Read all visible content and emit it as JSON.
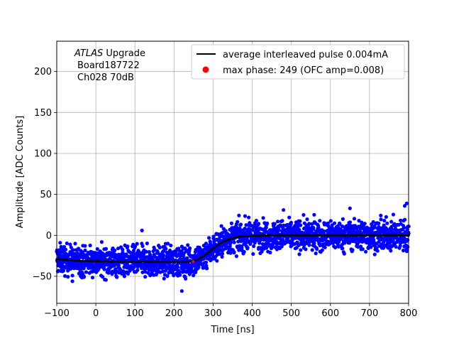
{
  "chart_data": {
    "type": "scatter",
    "xlabel": "Time [ns]",
    "ylabel": "Amplitude [ADC Counts]",
    "xlim": [
      -100,
      800
    ],
    "ylim": [
      -83,
      237
    ],
    "xticks": [
      -100,
      0,
      100,
      200,
      300,
      400,
      500,
      600,
      700,
      800
    ],
    "yticks": [
      -50,
      0,
      50,
      100,
      150,
      200
    ],
    "grid": true,
    "legend_position": "top-right",
    "annotation": {
      "line1_italic": "ATLAS",
      "line1_rest": " Upgrade",
      "line2": "Board187722",
      "line3": "Ch028 70dB"
    },
    "series": [
      {
        "name": "average interleaved pulse 0.004mA",
        "kind": "line",
        "color": "#000000",
        "x": [
          -100,
          -50,
          0,
          50,
          100,
          150,
          200,
          240,
          260,
          280,
          300,
          320,
          340,
          360,
          380,
          400,
          450,
          500,
          550,
          600,
          650,
          700,
          750,
          800
        ],
        "y": [
          -29,
          -31,
          -31.5,
          -32,
          -32,
          -32,
          -32,
          -32,
          -30,
          -24,
          -16,
          -9,
          -5,
          -2,
          -1,
          -0.5,
          0,
          0,
          0,
          0,
          0,
          0,
          0,
          0
        ]
      },
      {
        "name": "max phase: 249 (OFC amp=0.008)",
        "kind": "point",
        "color": "#ff0000",
        "x": [
          249
        ],
        "y": [
          -32
        ]
      },
      {
        "name": "",
        "kind": "scatter",
        "color": "#0000ff",
        "description": "dense blue sample points spread about ±20 ADC counts around the average pulse (min ≈ -68 near t=220, max ≈ 39 near t=795)"
      }
    ]
  }
}
